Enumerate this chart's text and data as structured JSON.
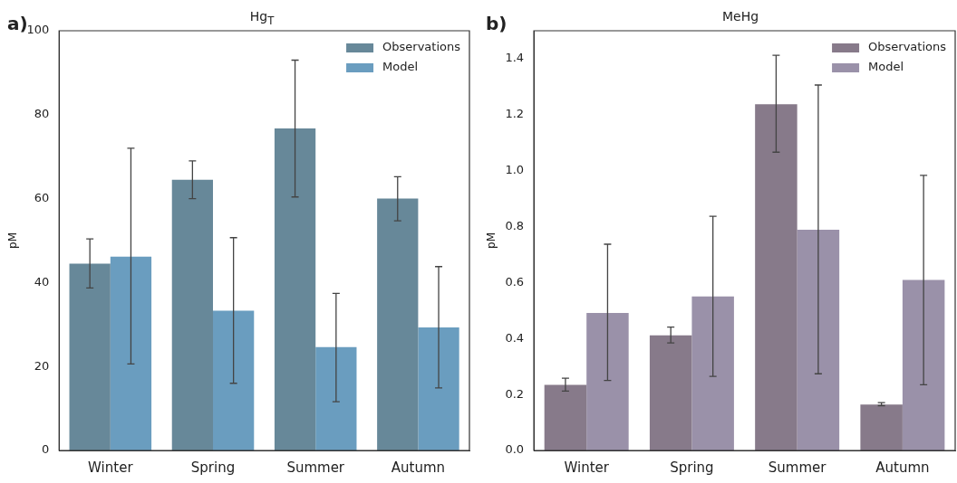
{
  "chart_data": [
    {
      "type": "bar",
      "title": "Hg$_{T}$",
      "ylabel": "pM",
      "annotations": [
        "a)"
      ],
      "categories": [
        "Winter",
        "Spring",
        "Summer",
        "Autumn"
      ],
      "series": [
        {
          "name": "Observations",
          "color": "#678899",
          "values": [
            44.5,
            64.5,
            76.7,
            60.0
          ],
          "errors": [
            [
              38.7,
              50.4
            ],
            [
              60.0,
              69.0
            ],
            [
              60.4,
              93.0
            ],
            [
              54.7,
              65.2
            ]
          ]
        },
        {
          "name": "Model",
          "color": "#6a9dbf",
          "values": [
            46.2,
            33.3,
            24.6,
            29.3
          ],
          "errors": [
            [
              20.6,
              72.0
            ],
            [
              16.0,
              50.7
            ],
            [
              11.6,
              37.4
            ],
            [
              14.9,
              43.8
            ]
          ]
        }
      ],
      "ylim": [
        0,
        100
      ],
      "yticks": [
        0,
        20,
        40,
        60,
        80,
        100
      ],
      "grid": false,
      "legend": "top right"
    },
    {
      "type": "bar",
      "title": "MeHg",
      "ylabel": "pM",
      "annotations": [
        "b)"
      ],
      "categories": [
        "Winter",
        "Spring",
        "Summer",
        "Autumn"
      ],
      "series": [
        {
          "name": "Observations",
          "color": "#877a8a",
          "values": [
            0.234,
            0.411,
            1.237,
            0.164
          ],
          "errors": [
            [
              0.212,
              0.258
            ],
            [
              0.384,
              0.441
            ],
            [
              1.066,
              1.412
            ],
            [
              0.16,
              0.171
            ]
          ]
        },
        {
          "name": "Model",
          "color": "#9a91a9",
          "values": [
            0.491,
            0.55,
            0.789,
            0.609
          ],
          "errors": [
            [
              0.25,
              0.737
            ],
            [
              0.265,
              0.837
            ],
            [
              0.274,
              1.306
            ],
            [
              0.235,
              0.983
            ]
          ]
        }
      ],
      "ylim": [
        0,
        1.5
      ],
      "yticks": [
        {
          "value": 0,
          "label": "0.0"
        },
        0.2,
        0.4,
        0.6,
        0.8,
        {
          "value": 1,
          "label": "1.0"
        },
        1.2,
        1.4
      ],
      "grid": false,
      "legend": "top right"
    }
  ]
}
